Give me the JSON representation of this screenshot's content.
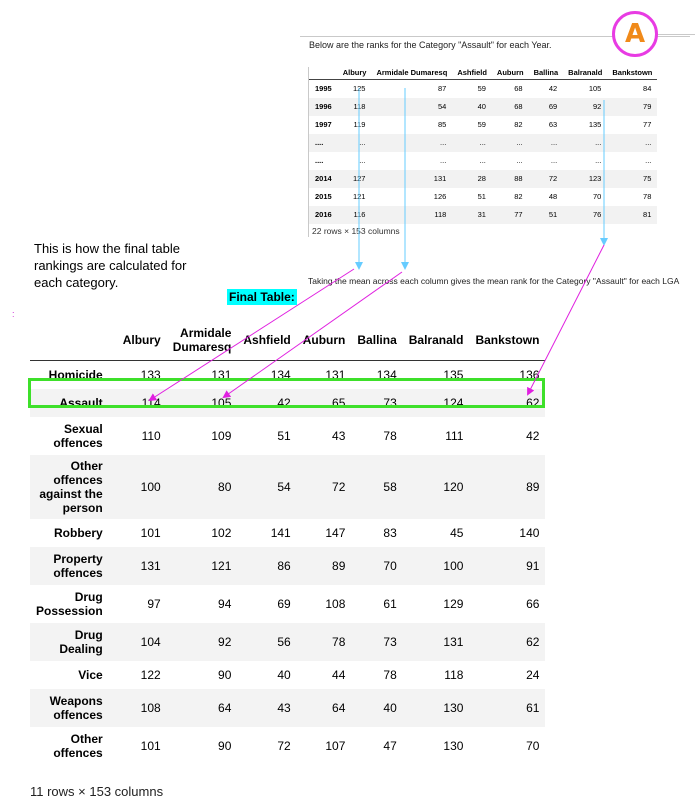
{
  "badge": {
    "letter": "A",
    "ring_color": "#e83be3",
    "letter_color": "#f08a1a"
  },
  "top_caption": "Below are the ranks for the Category \"Assault\" for each Year.",
  "small_table": {
    "headers": [
      "",
      "Albury",
      "Armidale Dumaresq",
      "Ashfield",
      "Auburn",
      "Ballina",
      "Balranald",
      "Bankstown"
    ],
    "rows": [
      [
        "1995",
        "125",
        "87",
        "59",
        "68",
        "42",
        "105",
        "84"
      ],
      [
        "1996",
        "118",
        "54",
        "40",
        "68",
        "69",
        "92",
        "79"
      ],
      [
        "1997",
        "119",
        "85",
        "59",
        "82",
        "63",
        "135",
        "77"
      ],
      [
        "....",
        "...",
        "...",
        "...",
        "...",
        "...",
        "...",
        "..."
      ],
      [
        "....",
        "...",
        "...",
        "...",
        "...",
        "...",
        "...",
        "..."
      ],
      [
        "2014",
        "127",
        "131",
        "28",
        "88",
        "72",
        "123",
        "75"
      ],
      [
        "2015",
        "121",
        "126",
        "51",
        "82",
        "48",
        "70",
        "78"
      ],
      [
        "2016",
        "116",
        "118",
        "31",
        "77",
        "51",
        "76",
        "81"
      ]
    ],
    "footer": "22 rows × 153 columns"
  },
  "explanation": "This is how the final table rankings are calculated for each category.",
  "mean_note": "Taking the mean across each column gives the mean rank for the Category \"Assault\" for each LGA",
  "final_label": "Final Table:",
  "tiny_mark": ":",
  "final_table": {
    "headers": [
      "",
      "Albury",
      "Armidale Dumaresq",
      "Ashfield",
      "Auburn",
      "Ballina",
      "Balranald",
      "Bankstown"
    ],
    "rows": [
      {
        "label": "Homicide",
        "values": [
          "133",
          "131",
          "134",
          "131",
          "134",
          "135",
          "136"
        ]
      },
      {
        "label": "Assault",
        "values": [
          "114",
          "105",
          "42",
          "65",
          "73",
          "124",
          "62"
        ]
      },
      {
        "label": "Sexual offences",
        "values": [
          "110",
          "109",
          "51",
          "43",
          "78",
          "111",
          "42"
        ]
      },
      {
        "label": "Other offences against the person",
        "values": [
          "100",
          "80",
          "54",
          "72",
          "58",
          "120",
          "89"
        ]
      },
      {
        "label": "Robbery",
        "values": [
          "101",
          "102",
          "141",
          "147",
          "83",
          "45",
          "140"
        ]
      },
      {
        "label": "Property offences",
        "values": [
          "131",
          "121",
          "86",
          "89",
          "70",
          "100",
          "91"
        ]
      },
      {
        "label": "Drug Possession",
        "values": [
          "97",
          "94",
          "69",
          "108",
          "61",
          "129",
          "66"
        ]
      },
      {
        "label": "Drug Dealing",
        "values": [
          "104",
          "92",
          "56",
          "78",
          "73",
          "131",
          "62"
        ]
      },
      {
        "label": "Vice",
        "values": [
          "122",
          "90",
          "40",
          "44",
          "78",
          "118",
          "24"
        ]
      },
      {
        "label": "Weapons offences",
        "values": [
          "108",
          "64",
          "43",
          "64",
          "40",
          "130",
          "61"
        ]
      },
      {
        "label": "Other offences",
        "values": [
          "101",
          "90",
          "72",
          "107",
          "47",
          "130",
          "70"
        ]
      }
    ],
    "footer": "11 rows × 153 columns"
  },
  "colors": {
    "arrow": "#e020e0",
    "highlight": "#3ee02a",
    "label_bg": "#00ffff",
    "vertical_arrow": "#66ccff"
  }
}
